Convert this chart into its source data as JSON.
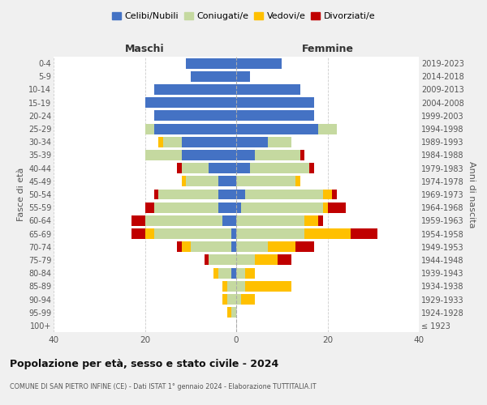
{
  "age_groups": [
    "100+",
    "95-99",
    "90-94",
    "85-89",
    "80-84",
    "75-79",
    "70-74",
    "65-69",
    "60-64",
    "55-59",
    "50-54",
    "45-49",
    "40-44",
    "35-39",
    "30-34",
    "25-29",
    "20-24",
    "15-19",
    "10-14",
    "5-9",
    "0-4"
  ],
  "birth_years": [
    "≤ 1923",
    "1924-1928",
    "1929-1933",
    "1934-1938",
    "1939-1943",
    "1944-1948",
    "1949-1953",
    "1954-1958",
    "1959-1963",
    "1964-1968",
    "1969-1973",
    "1974-1978",
    "1979-1983",
    "1984-1988",
    "1989-1993",
    "1994-1998",
    "1999-2003",
    "2004-2008",
    "2009-2013",
    "2014-2018",
    "2019-2023"
  ],
  "colors": {
    "celibe": "#4472c4",
    "coniugato": "#c5d9a0",
    "vedovo": "#ffc000",
    "divorziato": "#c00000"
  },
  "maschi": {
    "celibe": [
      0,
      0,
      0,
      0,
      1,
      0,
      1,
      1,
      3,
      4,
      4,
      4,
      6,
      12,
      12,
      18,
      18,
      20,
      18,
      10,
      11
    ],
    "coniugato": [
      0,
      1,
      2,
      2,
      3,
      6,
      9,
      17,
      17,
      14,
      13,
      7,
      6,
      8,
      4,
      2,
      0,
      0,
      0,
      0,
      0
    ],
    "vedovo": [
      0,
      1,
      1,
      1,
      1,
      0,
      2,
      2,
      0,
      0,
      0,
      1,
      0,
      0,
      1,
      0,
      0,
      0,
      0,
      0,
      0
    ],
    "divorziato": [
      0,
      0,
      0,
      0,
      0,
      1,
      1,
      3,
      3,
      2,
      1,
      0,
      1,
      0,
      0,
      0,
      0,
      0,
      0,
      0,
      0
    ]
  },
  "femmine": {
    "nubile": [
      0,
      0,
      0,
      0,
      0,
      0,
      0,
      0,
      0,
      1,
      2,
      0,
      3,
      4,
      7,
      18,
      17,
      17,
      14,
      3,
      10
    ],
    "coniugata": [
      0,
      0,
      1,
      2,
      2,
      4,
      7,
      15,
      15,
      18,
      17,
      13,
      13,
      10,
      5,
      4,
      0,
      0,
      0,
      0,
      0
    ],
    "vedova": [
      0,
      0,
      3,
      10,
      2,
      5,
      6,
      10,
      3,
      1,
      2,
      1,
      0,
      0,
      0,
      0,
      0,
      0,
      0,
      0,
      0
    ],
    "divorziata": [
      0,
      0,
      0,
      0,
      0,
      3,
      4,
      6,
      1,
      4,
      1,
      0,
      1,
      1,
      0,
      0,
      0,
      0,
      0,
      0,
      0
    ]
  },
  "xlim": 40,
  "title_main": "Popolazione per età, sesso e stato civile - 2024",
  "title_sub": "COMUNE DI SAN PIETRO INFINE (CE) - Dati ISTAT 1° gennaio 2024 - Elaborazione TUTTITALIA.IT",
  "ylabel_left": "Fasce di età",
  "ylabel_right": "Anni di nascita",
  "xlabel_left": "Maschi",
  "xlabel_right": "Femmine",
  "bg_color": "#f0f0f0",
  "plot_bg": "#ffffff"
}
